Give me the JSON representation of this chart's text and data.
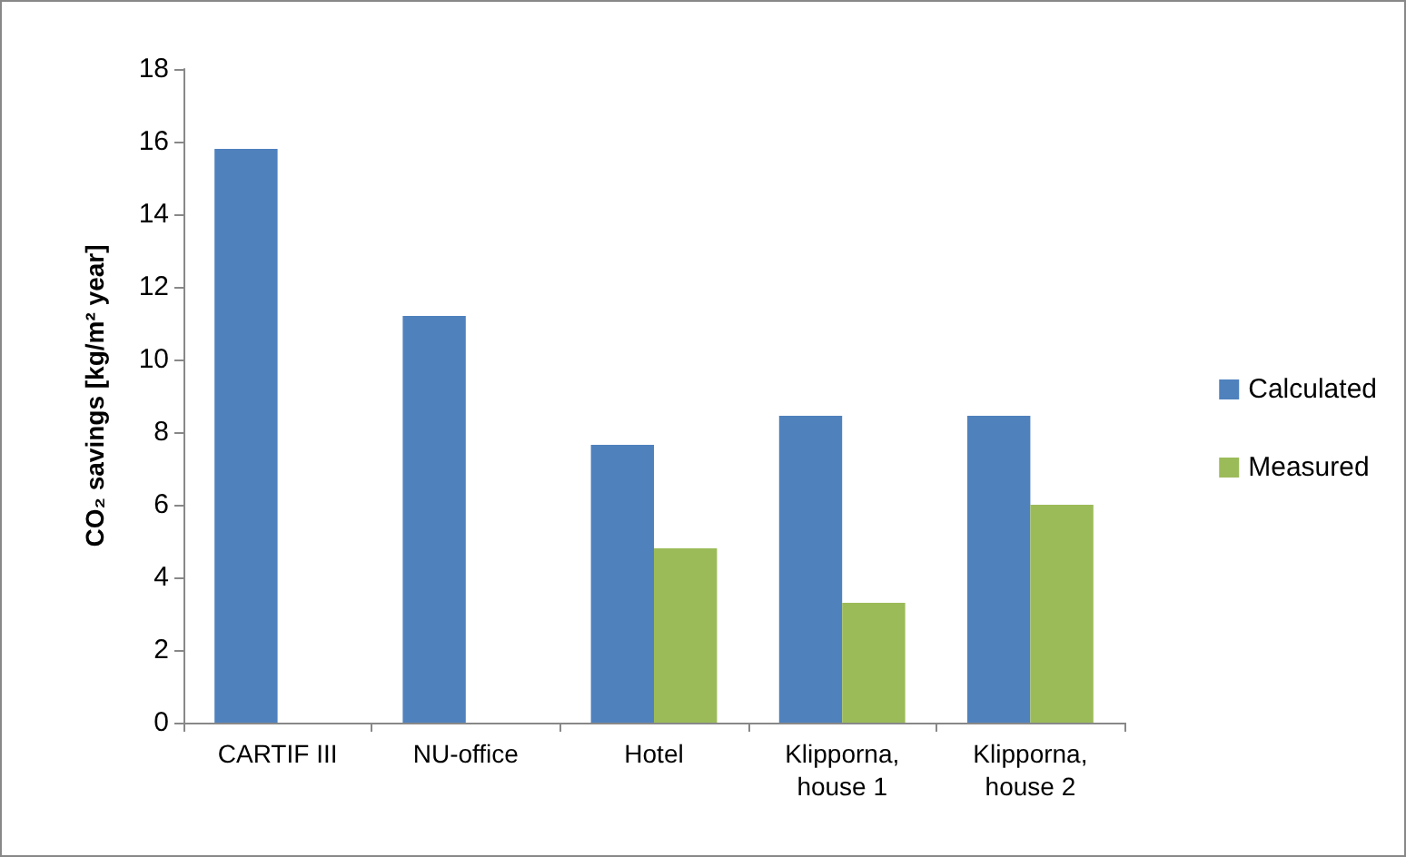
{
  "chart_data": {
    "type": "bar",
    "ylabel": "CO₂ savings [kg/m² year]",
    "categories": [
      "CARTIF III",
      "NU-office",
      "Hotel",
      "Klipporna,\nhouse 1",
      "Klipporna,\nhouse 2"
    ],
    "series": [
      {
        "name": "Calculated",
        "color": "#4f81bd",
        "values": [
          15.8,
          11.2,
          7.65,
          8.45,
          8.45
        ]
      },
      {
        "name": "Measured",
        "color": "#9bbb59",
        "values": [
          null,
          null,
          4.8,
          3.3,
          6.0
        ]
      }
    ],
    "ylim": [
      0,
      18
    ],
    "yticks": [
      0,
      2,
      4,
      6,
      8,
      10,
      12,
      14,
      16,
      18
    ],
    "grid": false,
    "legend": "right"
  }
}
